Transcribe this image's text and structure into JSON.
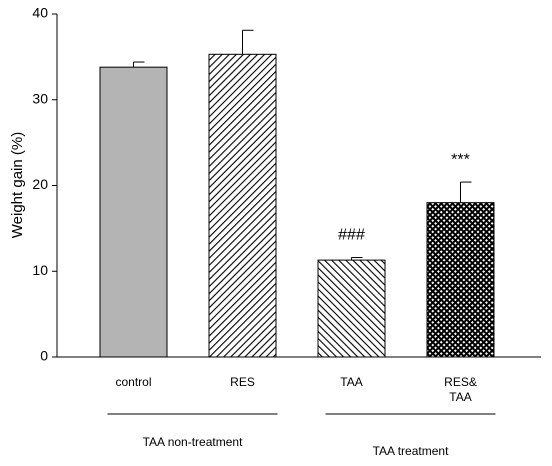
{
  "chart_data": {
    "type": "bar",
    "y_label": "Weight gain (%)",
    "categories": [
      "control",
      "RES",
      "TAA",
      "RES&\nTAA"
    ],
    "values": [
      33.8,
      35.3,
      11.3,
      18.0
    ],
    "errors": [
      0.6,
      2.8,
      0.3,
      2.4
    ],
    "patterns": [
      "solid",
      "diag-up",
      "diag-down",
      "cross"
    ],
    "color": "#b4b4b4",
    "ylim": [
      0,
      40
    ],
    "yticks": [
      0,
      10,
      20,
      30,
      40
    ],
    "annotations": [
      {
        "text": "###",
        "category": "TAA"
      },
      {
        "text": "***",
        "category": "RES&\nTAA"
      }
    ],
    "groups": [
      {
        "label": "TAA non-treatment",
        "categories": [
          "control",
          "RES"
        ]
      },
      {
        "label": "TAA treatment",
        "categories": [
          "TAA",
          "RES&\nTAA"
        ]
      }
    ]
  }
}
